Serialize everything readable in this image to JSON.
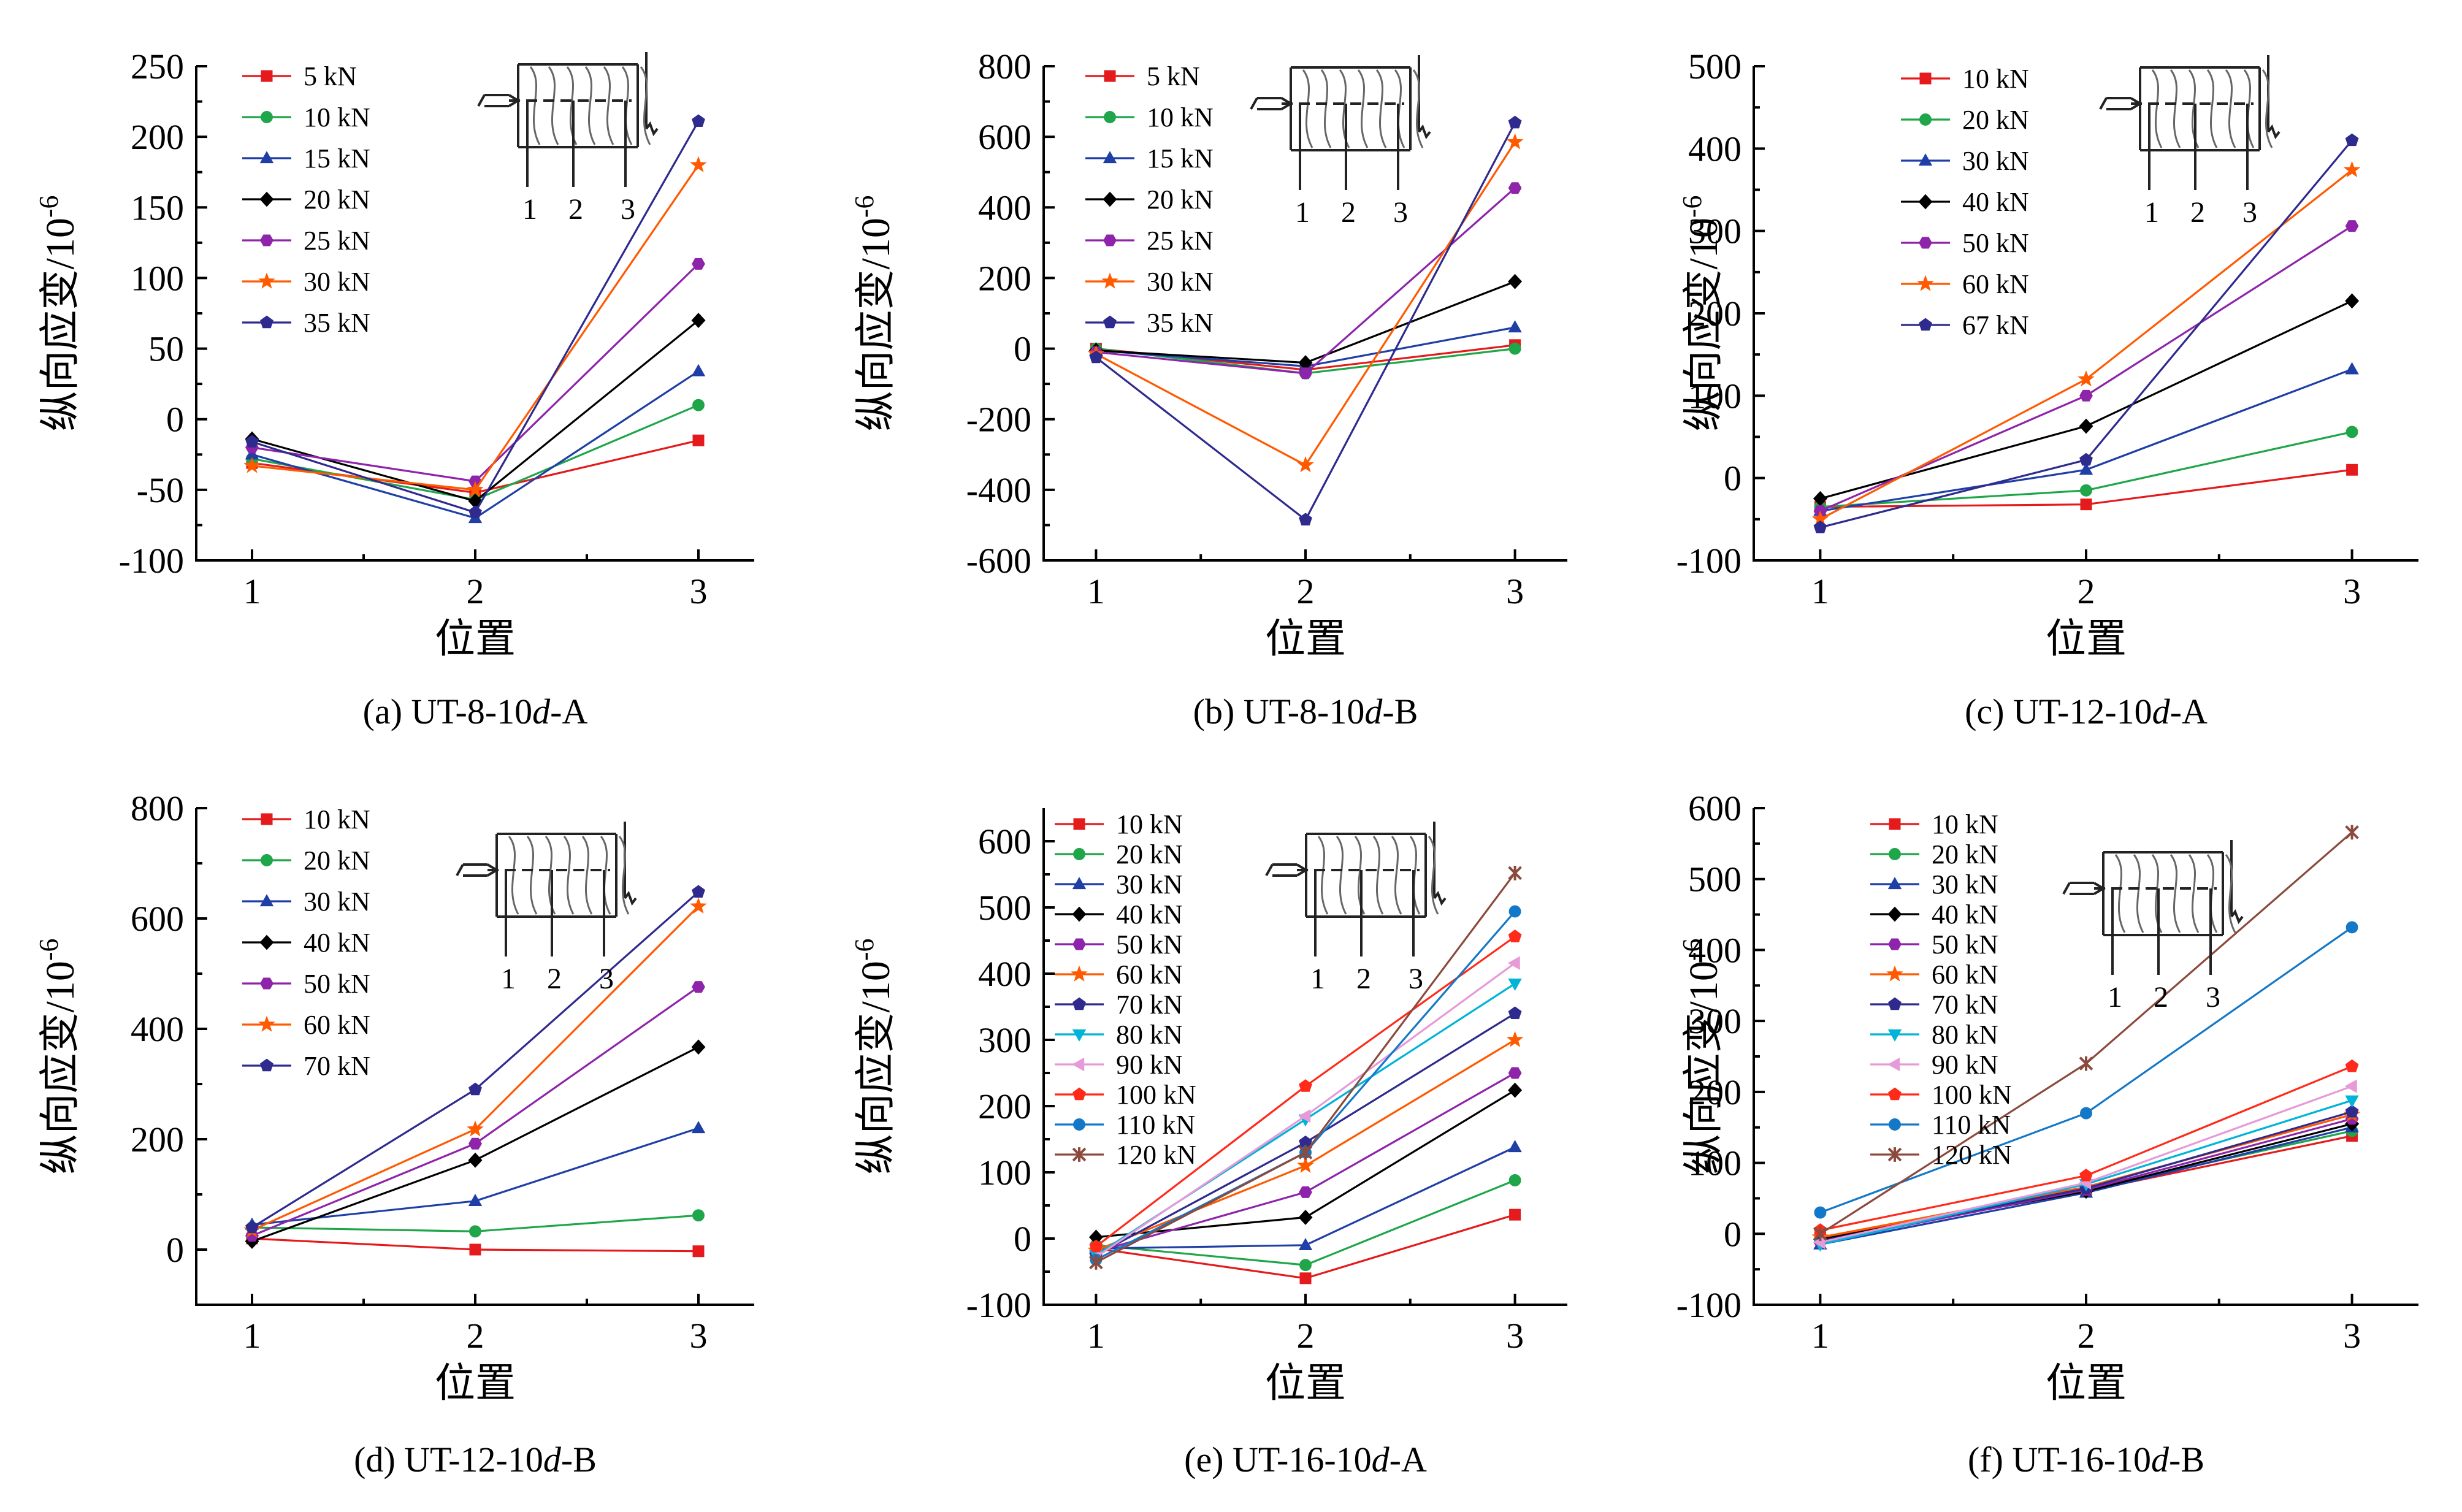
{
  "colors": {
    "red": "#e41a1c",
    "green": "#1fa64a",
    "blue": "#1f3fa6",
    "black": "#000000",
    "purple": "#8e24aa",
    "orange": "#ff5a00",
    "navy": "#2e2a8e",
    "cyan": "#00b4d8",
    "pink": "#e79ad8",
    "red2": "#ff2a1a",
    "sky": "#1478c8",
    "brown": "#8b4a3c"
  },
  "chart_data": [
    {
      "type": "line",
      "caption": {
        "prefix": "(a) UT-8-10",
        "italic": "d",
        "suffix": "-A"
      },
      "xlabel": "位置",
      "ylabel": {
        "main": "纵向应变/10",
        "sup": "-6"
      },
      "categories": [
        "1",
        "2",
        "3"
      ],
      "x": [
        1,
        2,
        3
      ],
      "ylim": [
        -100,
        250
      ],
      "yticks": [
        -100,
        -50,
        0,
        50,
        100,
        150,
        200,
        250
      ],
      "inset_labels": [
        "1",
        "2",
        "3"
      ],
      "series": [
        {
          "name": "5 kN",
          "marker": "square",
          "color": "#e41a1c",
          "values": [
            -31,
            -52,
            -15
          ]
        },
        {
          "name": "10 kN",
          "marker": "circle",
          "color": "#1fa64a",
          "values": [
            -28,
            -57,
            10
          ]
        },
        {
          "name": "15 kN",
          "marker": "triangle",
          "color": "#1f3fa6",
          "values": [
            -25,
            -70,
            34
          ]
        },
        {
          "name": "20 kN",
          "marker": "diamond",
          "color": "#000000",
          "values": [
            -14,
            -58,
            70
          ]
        },
        {
          "name": "25 kN",
          "marker": "hexagon",
          "color": "#8e24aa",
          "values": [
            -20,
            -44,
            110
          ]
        },
        {
          "name": "30 kN",
          "marker": "star",
          "color": "#ff5a00",
          "values": [
            -33,
            -50,
            180
          ]
        },
        {
          "name": "35 kN",
          "marker": "pentagon",
          "color": "#2e2a8e",
          "values": [
            -16,
            -66,
            211
          ]
        }
      ]
    },
    {
      "type": "line",
      "caption": {
        "prefix": "(b) UT-8-10",
        "italic": "d",
        "suffix": "-B"
      },
      "xlabel": "位置",
      "ylabel": {
        "main": "纵向应变/10",
        "sup": "-6"
      },
      "categories": [
        "1",
        "2",
        "3"
      ],
      "x": [
        1,
        2,
        3
      ],
      "ylim": [
        -600,
        800
      ],
      "yticks": [
        -600,
        -400,
        -200,
        0,
        200,
        400,
        600,
        800
      ],
      "inset_labels": [
        "1",
        "2",
        "3"
      ],
      "series": [
        {
          "name": "5 kN",
          "marker": "square",
          "color": "#e41a1c",
          "values": [
            0,
            -60,
            10
          ]
        },
        {
          "name": "10 kN",
          "marker": "circle",
          "color": "#1fa64a",
          "values": [
            0,
            -70,
            0
          ]
        },
        {
          "name": "15 kN",
          "marker": "triangle",
          "color": "#1f3fa6",
          "values": [
            -5,
            -50,
            60
          ]
        },
        {
          "name": "20 kN",
          "marker": "diamond",
          "color": "#000000",
          "values": [
            -5,
            -40,
            190
          ]
        },
        {
          "name": "25 kN",
          "marker": "hexagon",
          "color": "#8e24aa",
          "values": [
            -10,
            -70,
            455
          ]
        },
        {
          "name": "30 kN",
          "marker": "star",
          "color": "#ff5a00",
          "values": [
            -15,
            -330,
            585
          ]
        },
        {
          "name": "35 kN",
          "marker": "pentagon",
          "color": "#2e2a8e",
          "values": [
            -25,
            -485,
            640
          ]
        }
      ]
    },
    {
      "type": "line",
      "caption": {
        "prefix": "(c) UT-12-10",
        "italic": "d",
        "suffix": "-A"
      },
      "xlabel": "位置",
      "ylabel": {
        "main": "纵向应变/10",
        "sup": "-6"
      },
      "categories": [
        "1",
        "2",
        "3"
      ],
      "x": [
        1,
        2,
        3
      ],
      "ylim": [
        -100,
        500
      ],
      "yticks": [
        -100,
        0,
        100,
        200,
        300,
        400,
        500
      ],
      "inset_labels": [
        "1",
        "2",
        "3"
      ],
      "series": [
        {
          "name": "10 kN",
          "marker": "square",
          "color": "#e41a1c",
          "values": [
            -35,
            -32,
            10
          ]
        },
        {
          "name": "20 kN",
          "marker": "circle",
          "color": "#1fa64a",
          "values": [
            -35,
            -15,
            56
          ]
        },
        {
          "name": "30 kN",
          "marker": "triangle",
          "color": "#1f3fa6",
          "values": [
            -40,
            10,
            132
          ]
        },
        {
          "name": "40 kN",
          "marker": "diamond",
          "color": "#000000",
          "values": [
            -25,
            63,
            215
          ]
        },
        {
          "name": "50 kN",
          "marker": "hexagon",
          "color": "#8e24aa",
          "values": [
            -40,
            100,
            306
          ]
        },
        {
          "name": "60 kN",
          "marker": "star",
          "color": "#ff5a00",
          "values": [
            -50,
            120,
            374
          ]
        },
        {
          "name": "67 kN",
          "marker": "pentagon",
          "color": "#2e2a8e",
          "values": [
            -60,
            22,
            410
          ]
        }
      ]
    },
    {
      "type": "line",
      "caption": {
        "prefix": "(d) UT-12-10",
        "italic": "d",
        "suffix": "-B"
      },
      "xlabel": "位置",
      "ylabel": {
        "main": "纵向应变/10",
        "sup": "-6"
      },
      "categories": [
        "1",
        "2",
        "3"
      ],
      "x": [
        1,
        2,
        3
      ],
      "ylim": [
        -100,
        800
      ],
      "yticks": [
        0,
        200,
        400,
        600,
        800
      ],
      "inset_labels": [
        "1",
        "2",
        "3"
      ],
      "series": [
        {
          "name": "10 kN",
          "marker": "square",
          "color": "#e41a1c",
          "values": [
            20,
            0,
            -3
          ]
        },
        {
          "name": "20 kN",
          "marker": "circle",
          "color": "#1fa64a",
          "values": [
            40,
            33,
            62
          ]
        },
        {
          "name": "30 kN",
          "marker": "triangle",
          "color": "#1f3fa6",
          "values": [
            45,
            88,
            220
          ]
        },
        {
          "name": "40 kN",
          "marker": "diamond",
          "color": "#000000",
          "values": [
            15,
            162,
            367
          ]
        },
        {
          "name": "50 kN",
          "marker": "hexagon",
          "color": "#8e24aa",
          "values": [
            25,
            192,
            476
          ]
        },
        {
          "name": "60 kN",
          "marker": "star",
          "color": "#ff5a00",
          "values": [
            35,
            218,
            622
          ]
        },
        {
          "name": "70 kN",
          "marker": "pentagon",
          "color": "#2e2a8e",
          "values": [
            40,
            290,
            648
          ]
        }
      ]
    },
    {
      "type": "line",
      "caption": {
        "prefix": "(e) UT-16-10",
        "italic": "d",
        "suffix": "-A"
      },
      "xlabel": "位置",
      "ylabel": {
        "main": "纵向应变/10",
        "sup": "-6"
      },
      "categories": [
        "1",
        "2",
        "3"
      ],
      "x": [
        1,
        2,
        3
      ],
      "ylim": [
        -100,
        650
      ],
      "yticks": [
        -100,
        0,
        100,
        200,
        300,
        400,
        500,
        600
      ],
      "inset_labels": [
        "1",
        "2",
        "3"
      ],
      "series": [
        {
          "name": "10 kN",
          "marker": "square",
          "color": "#e41a1c",
          "values": [
            -15,
            -60,
            36
          ]
        },
        {
          "name": "20 kN",
          "marker": "circle",
          "color": "#1fa64a",
          "values": [
            -10,
            -40,
            88
          ]
        },
        {
          "name": "30 kN",
          "marker": "triangle",
          "color": "#1f3fa6",
          "values": [
            -15,
            -10,
            138
          ]
        },
        {
          "name": "40 kN",
          "marker": "diamond",
          "color": "#000000",
          "values": [
            2,
            32,
            224
          ]
        },
        {
          "name": "50 kN",
          "marker": "hexagon",
          "color": "#8e24aa",
          "values": [
            -20,
            70,
            250
          ]
        },
        {
          "name": "60 kN",
          "marker": "star",
          "color": "#ff5a00",
          "values": [
            -18,
            110,
            300
          ]
        },
        {
          "name": "70 kN",
          "marker": "pentagon",
          "color": "#2e2a8e",
          "values": [
            -25,
            145,
            340
          ]
        },
        {
          "name": "80 kN",
          "marker": "triangle-down",
          "color": "#00b4d8",
          "values": [
            -25,
            180,
            385
          ]
        },
        {
          "name": "90 kN",
          "marker": "triangle-left",
          "color": "#e79ad8",
          "values": [
            -28,
            185,
            416
          ]
        },
        {
          "name": "100 kN",
          "marker": "pentagon",
          "color": "#ff2a1a",
          "values": [
            -12,
            230,
            456
          ]
        },
        {
          "name": "110 kN",
          "marker": "circle",
          "color": "#1478c8",
          "values": [
            -32,
            130,
            494
          ]
        },
        {
          "name": "120 kN",
          "marker": "cross",
          "color": "#8b4a3c",
          "values": [
            -36,
            130,
            552
          ]
        }
      ]
    },
    {
      "type": "line",
      "caption": {
        "prefix": "(f) UT-16-10",
        "italic": "d",
        "suffix": "-B"
      },
      "xlabel": "位置",
      "ylabel": {
        "main": "纵向应变/10",
        "sup": "-6"
      },
      "categories": [
        "1",
        "2",
        "3"
      ],
      "x": [
        1,
        2,
        3
      ],
      "ylim": [
        -100,
        600
      ],
      "yticks": [
        -100,
        0,
        100,
        200,
        300,
        400,
        500,
        600
      ],
      "inset_labels": [
        "1",
        "2",
        "3"
      ],
      "series": [
        {
          "name": "10 kN",
          "marker": "square",
          "color": "#e41a1c",
          "values": [
            -5,
            60,
            138
          ]
        },
        {
          "name": "20 kN",
          "marker": "circle",
          "color": "#1fa64a",
          "values": [
            -10,
            62,
            145
          ]
        },
        {
          "name": "30 kN",
          "marker": "triangle",
          "color": "#1f3fa6",
          "values": [
            -15,
            58,
            150
          ]
        },
        {
          "name": "40 kN",
          "marker": "diamond",
          "color": "#000000",
          "values": [
            -8,
            60,
            155
          ]
        },
        {
          "name": "50 kN",
          "marker": "hexagon",
          "color": "#8e24aa",
          "values": [
            -12,
            62,
            162
          ]
        },
        {
          "name": "60 kN",
          "marker": "star",
          "color": "#ff5a00",
          "values": [
            -5,
            66,
            168
          ]
        },
        {
          "name": "70 kN",
          "marker": "pentagon",
          "color": "#2e2a8e",
          "values": [
            -10,
            64,
            172
          ]
        },
        {
          "name": "80 kN",
          "marker": "triangle-down",
          "color": "#00b4d8",
          "values": [
            -15,
            70,
            188
          ]
        },
        {
          "name": "90 kN",
          "marker": "triangle-left",
          "color": "#e79ad8",
          "values": [
            -12,
            72,
            208
          ]
        },
        {
          "name": "100 kN",
          "marker": "pentagon",
          "color": "#ff2a1a",
          "values": [
            5,
            82,
            236
          ]
        },
        {
          "name": "110 kN",
          "marker": "circle",
          "color": "#1478c8",
          "values": [
            30,
            170,
            432
          ]
        },
        {
          "name": "120 kN",
          "marker": "cross",
          "color": "#8b4a3c",
          "values": [
            0,
            240,
            566
          ]
        }
      ]
    }
  ]
}
